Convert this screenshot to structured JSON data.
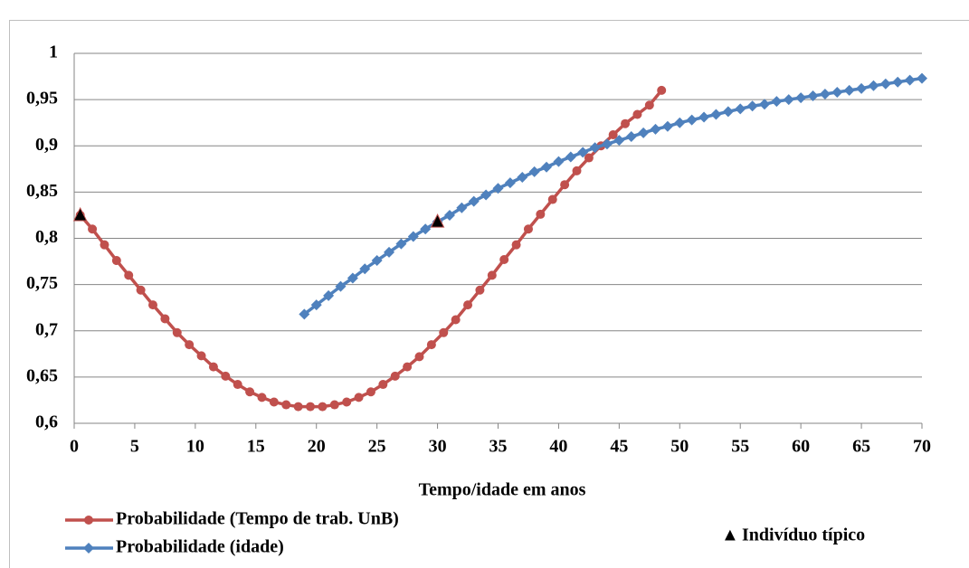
{
  "chart_data": {
    "type": "line",
    "xlabel": "Tempo/idade em anos",
    "xlim": [
      0,
      70
    ],
    "xticks": [
      0,
      5,
      10,
      15,
      20,
      25,
      30,
      35,
      40,
      45,
      50,
      55,
      60,
      65,
      70
    ],
    "ylim": [
      0.6,
      1
    ],
    "yticks": [
      {
        "value": 0.6,
        "label": "0,6"
      },
      {
        "value": 0.65,
        "label": "0,65"
      },
      {
        "value": 0.7,
        "label": "0,7"
      },
      {
        "value": 0.75,
        "label": "0,75"
      },
      {
        "value": 0.8,
        "label": "0,8"
      },
      {
        "value": 0.85,
        "label": "0,85"
      },
      {
        "value": 0.9,
        "label": "0,9"
      },
      {
        "value": 0.95,
        "label": "0,95"
      },
      {
        "value": 1,
        "label": "1"
      }
    ],
    "grid": true,
    "series": [
      {
        "name": "Probabilidade (Tempo de trab. UnB)",
        "color": "#c0504d",
        "marker": "circle",
        "x": [
          0.5,
          1.5,
          2.5,
          3.5,
          4.5,
          5.5,
          6.5,
          7.5,
          8.5,
          9.5,
          10.5,
          11.5,
          12.5,
          13.5,
          14.5,
          15.5,
          16.5,
          17.5,
          18.5,
          19.5,
          20.5,
          21.5,
          22.5,
          23.5,
          24.5,
          25.5,
          26.5,
          27.5,
          28.5,
          29.5,
          30.5,
          31.5,
          32.5,
          33.5,
          34.5,
          35.5,
          36.5,
          37.5,
          38.5,
          39.5,
          40.5,
          41.5,
          42.5,
          43.5,
          44.5,
          45.5,
          46.5,
          47.5,
          48.5
        ],
        "values": [
          0.825,
          0.81,
          0.793,
          0.776,
          0.76,
          0.744,
          0.728,
          0.713,
          0.698,
          0.685,
          0.673,
          0.661,
          0.651,
          0.642,
          0.634,
          0.628,
          0.623,
          0.62,
          0.618,
          0.618,
          0.618,
          0.62,
          0.623,
          0.628,
          0.634,
          0.642,
          0.651,
          0.661,
          0.672,
          0.685,
          0.698,
          0.712,
          0.728,
          0.744,
          0.76,
          0.777,
          0.793,
          0.81,
          0.826,
          0.842,
          0.858,
          0.873,
          0.887,
          0.9,
          0.912,
          0.924,
          0.934,
          0.944,
          0.96
        ]
      },
      {
        "name": "Probabilidade (idade)",
        "color": "#4f81bd",
        "marker": "diamond",
        "x": [
          19,
          20,
          21,
          22,
          23,
          24,
          25,
          26,
          27,
          28,
          29,
          30,
          31,
          32,
          33,
          34,
          35,
          36,
          37,
          38,
          39,
          40,
          41,
          42,
          43,
          44,
          45,
          46,
          47,
          48,
          49,
          50,
          51,
          52,
          53,
          54,
          55,
          56,
          57,
          58,
          59,
          60,
          61,
          62,
          63,
          64,
          65,
          66,
          67,
          68,
          69,
          70
        ],
        "values": [
          0.718,
          0.728,
          0.738,
          0.748,
          0.757,
          0.767,
          0.776,
          0.785,
          0.794,
          0.802,
          0.81,
          0.818,
          0.825,
          0.833,
          0.84,
          0.847,
          0.854,
          0.86,
          0.866,
          0.872,
          0.877,
          0.883,
          0.888,
          0.893,
          0.898,
          0.902,
          0.906,
          0.91,
          0.914,
          0.918,
          0.921,
          0.925,
          0.928,
          0.931,
          0.934,
          0.937,
          0.94,
          0.943,
          0.945,
          0.948,
          0.95,
          0.952,
          0.954,
          0.956,
          0.958,
          0.96,
          0.962,
          0.965,
          0.967,
          0.969,
          0.971,
          0.973
        ]
      }
    ],
    "highlight": {
      "name": "Indivíduo típico",
      "color": "#000000",
      "x": [
        0.5,
        30
      ],
      "values": [
        0.825,
        0.818
      ]
    }
  }
}
